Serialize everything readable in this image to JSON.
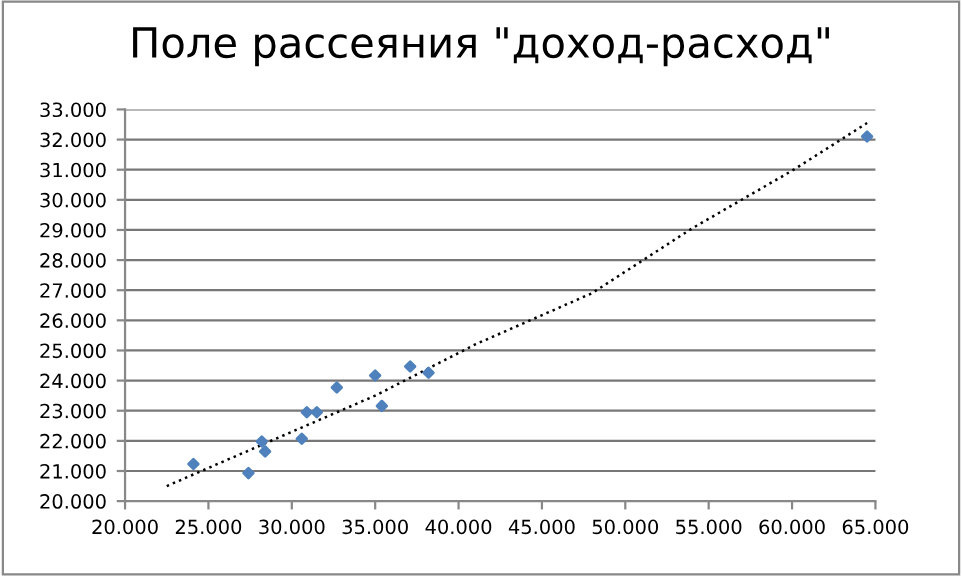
{
  "chart_data": {
    "type": "scatter",
    "title": "Поле рассеяния \"доход-расход\"",
    "grid": "y",
    "legend": false,
    "xlim": [
      20000,
      65000
    ],
    "ylim": [
      20000,
      33000
    ],
    "xticks": [
      {
        "value": 20000,
        "label": "20.000"
      },
      {
        "value": 25000,
        "label": "25.000"
      },
      {
        "value": 30000,
        "label": "30.000"
      },
      {
        "value": 35000,
        "label": "35.000"
      },
      {
        "value": 40000,
        "label": "40.000"
      },
      {
        "value": 45000,
        "label": "45.000"
      },
      {
        "value": 50000,
        "label": "50.000"
      },
      {
        "value": 55000,
        "label": "55.000"
      },
      {
        "value": 60000,
        "label": "60.000"
      },
      {
        "value": 65000,
        "label": "65.000"
      }
    ],
    "yticks": [
      {
        "value": 20000,
        "label": "20.000"
      },
      {
        "value": 21000,
        "label": "21.000"
      },
      {
        "value": 22000,
        "label": "22.000"
      },
      {
        "value": 23000,
        "label": "23.000"
      },
      {
        "value": 24000,
        "label": "24.000"
      },
      {
        "value": 25000,
        "label": "25.000"
      },
      {
        "value": 26000,
        "label": "26.000"
      },
      {
        "value": 27000,
        "label": "27.000"
      },
      {
        "value": 28000,
        "label": "28.000"
      },
      {
        "value": 29000,
        "label": "29.000"
      },
      {
        "value": 30000,
        "label": "30.000"
      },
      {
        "value": 31000,
        "label": "31.000"
      },
      {
        "value": 32000,
        "label": "32.000"
      },
      {
        "value": 33000,
        "label": "33.000"
      }
    ],
    "series": [
      {
        "color": "#4f81bd",
        "marker": "diamond",
        "x": [
          24100,
          27400,
          28200,
          28400,
          30600,
          30900,
          31500,
          32700,
          35000,
          35400,
          37100,
          38200,
          64500
        ],
        "values": [
          21230,
          20930,
          21980,
          21650,
          22070,
          22950,
          22950,
          23770,
          24170,
          23160,
          24470,
          24260,
          32100
        ]
      },
      {
        "type": "line",
        "color": "#000000",
        "line_style": "dotted",
        "marker": "none",
        "x": [
          22500,
          30000,
          35000,
          41000,
          48000,
          54000,
          60100,
          64500
        ],
        "values": [
          20500,
          22300,
          23500,
          25200,
          26900,
          29050,
          31000,
          32550
        ]
      }
    ]
  }
}
